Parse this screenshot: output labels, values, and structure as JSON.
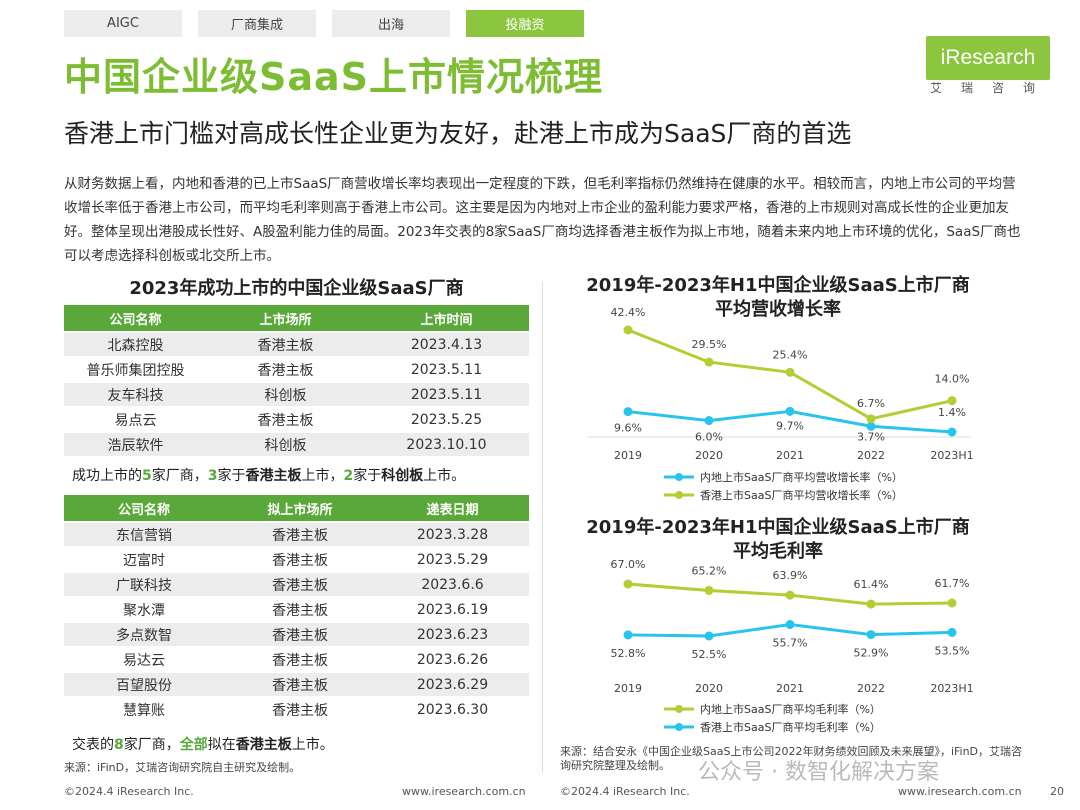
{
  "tabs": [
    {
      "label": "AIGC",
      "active": false
    },
    {
      "label": "厂商集成",
      "active": false
    },
    {
      "label": "出海",
      "active": false
    },
    {
      "label": "投融资",
      "active": true
    }
  ],
  "title": "中国企业级SaaS上市情况梳理",
  "subtitle": "香港上市门槛对高成长性企业更为友好，赴港上市成为SaaS厂商的首选",
  "logo": {
    "text": "iResearch",
    "cn": "艾瑞咨询"
  },
  "paragraph": "从财务数据上看，内地和香港的已上市SaaS厂商营收增长率均表现出一定程度的下跌，但毛利率指标仍然维持在健康的水平。相较而言，内地上市公司的平均营收增长率低于香港上市公司，而平均毛利率则高于香港上市公司。这主要是因为内地对上市企业的盈利能力要求严格，香港的上市规则对高成长性的企业更加友好。整体呈现出港股成长性好、A股盈利能力佳的局面。2023年交表的8家SaaS厂商均选择香港主板作为拟上市地，随着未来内地上市环境的优化，SaaS厂商也可以考虑选择科创板或北交所上市。",
  "listed": {
    "title": "2023年成功上市的中国企业级SaaS厂商",
    "headers": [
      "公司名称",
      "上市场所",
      "上市时间"
    ],
    "rows": [
      [
        "北森控股",
        "香港主板",
        "2023.4.13"
      ],
      [
        "普乐师集团控股",
        "香港主板",
        "2023.5.11"
      ],
      [
        "友车科技",
        "科创板",
        "2023.5.11"
      ],
      [
        "易点云",
        "香港主板",
        "2023.5.25"
      ],
      [
        "浩辰软件",
        "科创板",
        "2023.10.10"
      ]
    ],
    "summary": {
      "p1": "成功上市的",
      "n1": "5",
      "p2": "家厂商，",
      "n2": "3",
      "p3": "家于",
      "b1": "香港主板",
      "p4": "上市，",
      "n3": "2",
      "p5": "家于",
      "b2": "科创板",
      "p6": "上市。"
    }
  },
  "filed": {
    "headers": [
      "公司名称",
      "拟上市场所",
      "递表日期"
    ],
    "rows": [
      [
        "东信营销",
        "香港主板",
        "2023.3.28"
      ],
      [
        "迈富时",
        "香港主板",
        "2023.5.29"
      ],
      [
        "广联科技",
        "香港主板",
        "2023.6.6"
      ],
      [
        "聚水潭",
        "香港主板",
        "2023.6.19"
      ],
      [
        "多点数智",
        "香港主板",
        "2023.6.23"
      ],
      [
        "易达云",
        "香港主板",
        "2023.6.26"
      ],
      [
        "百望股份",
        "香港主板",
        "2023.6.29"
      ],
      [
        "慧算账",
        "香港主板",
        "2023.6.30"
      ]
    ],
    "summary": {
      "p1": "交表的",
      "n1": "8",
      "p2": "家厂商，",
      "g1": "全部",
      "p3": "拟在",
      "b1": "香港主板",
      "p4": "上市。"
    }
  },
  "source_left": "来源：iFinD，艾瑞咨询研究院自主研究及绘制。",
  "source_right": "来源：结合安永《中国企业级SaaS上市公司2022年财务绩效回顾及未来展望》，iFinD，艾瑞咨询研究院整理及绘制。",
  "watermark": "公众号 · 数智化解决方案",
  "footer": {
    "left_copyright": "©2024.4 iResearch Inc.",
    "left_url": "www.iresearch.com.cn",
    "right_copyright": "©2024.4 iResearch Inc.",
    "right_url": "www.iresearch.com.cn",
    "page": "20"
  },
  "colors": {
    "green": "#b3cd33",
    "cyan": "#27c4ee",
    "header_green": "#5ba83a",
    "title_green": "#7dbd33"
  },
  "chart_data": [
    {
      "type": "line",
      "title": "2019年-2023年H1中国企业级SaaS上市厂商平均营收增长率",
      "title_lines": [
        "2019年-2023年H1中国企业级SaaS上市厂商",
        "平均营收增长率"
      ],
      "categories": [
        "2019",
        "2020",
        "2021",
        "2022",
        "2023H1"
      ],
      "ylim": [
        0,
        45
      ],
      "series": [
        {
          "name": "内地上市SaaS厂商平均营收增长率（%）",
          "color": "#27c4ee",
          "values": [
            9.6,
            6.0,
            9.7,
            3.7,
            1.4
          ],
          "labels": [
            "9.6%",
            "6.0%",
            "9.7%",
            "3.7%",
            "1.4%"
          ]
        },
        {
          "name": "香港上市SaaS厂商平均营收增长率（%）",
          "color": "#b3cd33",
          "values": [
            42.4,
            29.5,
            25.4,
            6.7,
            14.0
          ],
          "labels": [
            "42.4%",
            "29.5%",
            "25.4%",
            "6.7%",
            "14.0%"
          ]
        }
      ]
    },
    {
      "type": "line",
      "title": "2019年-2023年H1中国企业级SaaS上市厂商平均毛利率",
      "title_lines": [
        "2019年-2023年H1中国企业级SaaS上市厂商",
        "平均毛利率"
      ],
      "categories": [
        "2019",
        "2020",
        "2021",
        "2022",
        "2023H1"
      ],
      "ylim": [
        40,
        75
      ],
      "series": [
        {
          "name": "内地上市SaaS厂商平均毛利率（%）",
          "color": "#b3cd33",
          "values": [
            67.0,
            65.2,
            63.9,
            61.4,
            61.7
          ],
          "labels": [
            "67.0%",
            "65.2%",
            "63.9%",
            "61.4%",
            "61.7%"
          ]
        },
        {
          "name": "香港上市SaaS厂商平均毛利率（%）",
          "color": "#27c4ee",
          "values": [
            52.8,
            52.5,
            55.7,
            52.9,
            53.5
          ],
          "labels": [
            "52.8%",
            "52.5%",
            "55.7%",
            "52.9%",
            "53.5%"
          ]
        }
      ]
    }
  ]
}
